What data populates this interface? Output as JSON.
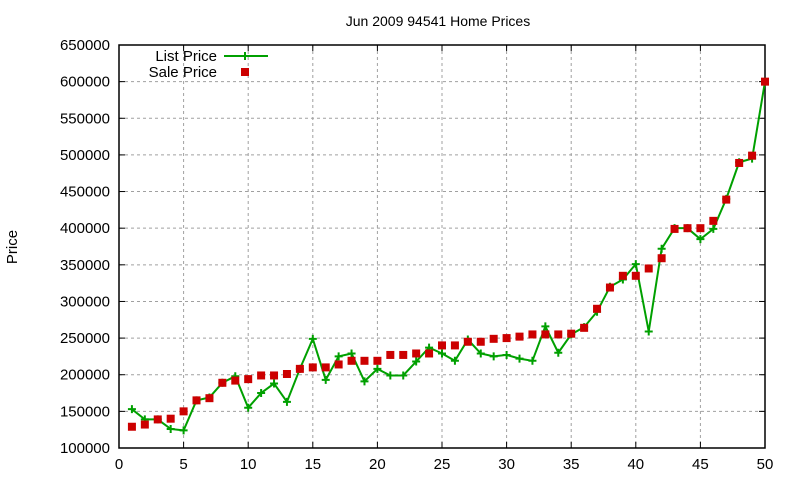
{
  "chart_data": {
    "type": "line",
    "title": "Jun 2009 94541 Home Prices",
    "xlabel": "",
    "ylabel": "Price",
    "xlim": [
      0,
      50
    ],
    "ylim": [
      100000,
      650000
    ],
    "xticks": [
      0,
      5,
      10,
      15,
      20,
      25,
      30,
      35,
      40,
      45,
      50
    ],
    "yticks": [
      100000,
      150000,
      200000,
      250000,
      300000,
      350000,
      400000,
      450000,
      500000,
      550000,
      600000,
      650000
    ],
    "grid": true,
    "legend_position": "top-left",
    "x": [
      1,
      2,
      3,
      4,
      5,
      6,
      7,
      8,
      9,
      10,
      11,
      12,
      13,
      14,
      15,
      16,
      17,
      18,
      19,
      20,
      21,
      22,
      23,
      24,
      25,
      26,
      27,
      28,
      29,
      30,
      31,
      32,
      33,
      34,
      35,
      36,
      37,
      38,
      39,
      40,
      41,
      42,
      43,
      44,
      45,
      46,
      47,
      48,
      49,
      50
    ],
    "series": [
      {
        "name": "List Price",
        "style": "linespoints",
        "color": "#00a000",
        "values": [
          153000,
          139000,
          139000,
          126000,
          124000,
          165000,
          169000,
          189000,
          198000,
          155000,
          175000,
          188000,
          163000,
          208000,
          249000,
          193000,
          225000,
          229000,
          191000,
          208000,
          199000,
          199000,
          218000,
          237000,
          229000,
          219000,
          248000,
          229000,
          225000,
          227000,
          222000,
          219000,
          266000,
          230000,
          255000,
          265000,
          286000,
          320000,
          330000,
          351000,
          259000,
          372000,
          400000,
          400000,
          385000,
          399000,
          440000,
          490000,
          495000,
          600000
        ]
      },
      {
        "name": "Sale Price",
        "style": "points",
        "color": "#cc0000",
        "values": [
          129000,
          132000,
          139000,
          140000,
          150000,
          165000,
          168000,
          189000,
          192000,
          194000,
          199000,
          199000,
          201000,
          208000,
          210000,
          210000,
          214000,
          219000,
          219000,
          219000,
          227000,
          227000,
          229000,
          229000,
          240000,
          240000,
          245000,
          245000,
          249000,
          250000,
          252000,
          255000,
          255000,
          255000,
          256000,
          264000,
          290000,
          319000,
          335000,
          335000,
          345000,
          359000,
          399000,
          400000,
          400000,
          410000,
          439000,
          489000,
          499000,
          600000
        ]
      }
    ]
  }
}
